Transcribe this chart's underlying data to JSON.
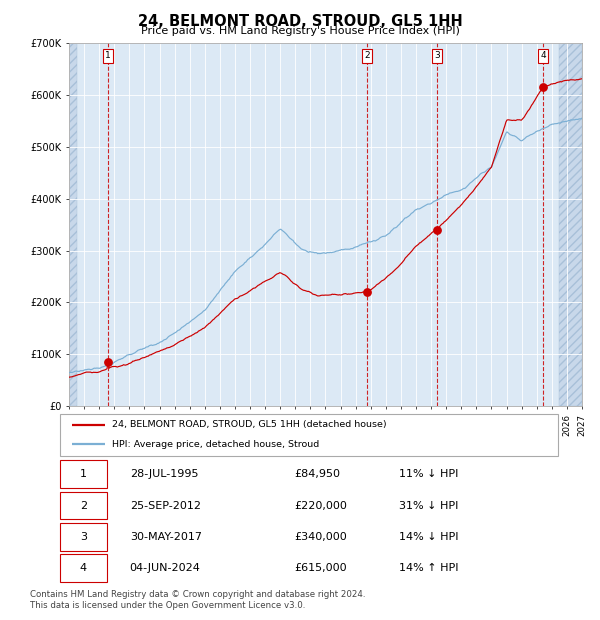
{
  "title": "24, BELMONT ROAD, STROUD, GL5 1HH",
  "subtitle": "Price paid vs. HM Land Registry's House Price Index (HPI)",
  "transactions": [
    {
      "num": 1,
      "date_num": 1995.57,
      "price": 84950,
      "label": "28-JUL-1995",
      "pct": "11%",
      "dir": "↓"
    },
    {
      "num": 2,
      "date_num": 2012.73,
      "price": 220000,
      "label": "25-SEP-2012",
      "pct": "31%",
      "dir": "↓"
    },
    {
      "num": 3,
      "date_num": 2017.41,
      "price": 340000,
      "label": "30-MAY-2017",
      "pct": "14%",
      "dir": "↓"
    },
    {
      "num": 4,
      "date_num": 2024.42,
      "price": 615000,
      "label": "04-JUN-2024",
      "pct": "14%",
      "dir": "↑"
    }
  ],
  "hpi_line_color": "#7bafd4",
  "price_line_color": "#cc0000",
  "dot_color": "#cc0000",
  "dashed_line_color": "#cc0000",
  "background_color": "#dce9f5",
  "grid_color": "#ffffff",
  "xlim": [
    1993,
    2027
  ],
  "ylim": [
    0,
    700000
  ],
  "yticks": [
    0,
    100000,
    200000,
    300000,
    400000,
    500000,
    600000,
    700000
  ],
  "ytick_labels": [
    "£0",
    "£100K",
    "£200K",
    "£300K",
    "£400K",
    "£500K",
    "£600K",
    "£700K"
  ],
  "xticks": [
    1993,
    1994,
    1995,
    1996,
    1997,
    1998,
    1999,
    2000,
    2001,
    2002,
    2003,
    2004,
    2005,
    2006,
    2007,
    2008,
    2009,
    2010,
    2011,
    2012,
    2013,
    2014,
    2015,
    2016,
    2017,
    2018,
    2019,
    2020,
    2021,
    2022,
    2023,
    2024,
    2025,
    2026,
    2027
  ],
  "legend_label_red": "24, BELMONT ROAD, STROUD, GL5 1HH (detached house)",
  "legend_label_blue": "HPI: Average price, detached house, Stroud",
  "footer": "Contains HM Land Registry data © Crown copyright and database right 2024.\nThis data is licensed under the Open Government Licence v3.0.",
  "table_rows": [
    [
      "1",
      "28-JUL-1995",
      "£84,950",
      "11% ↓ HPI"
    ],
    [
      "2",
      "25-SEP-2012",
      "£220,000",
      "31% ↓ HPI"
    ],
    [
      "3",
      "30-MAY-2017",
      "£340,000",
      "14% ↓ HPI"
    ],
    [
      "4",
      "04-JUN-2024",
      "£615,000",
      "14% ↑ HPI"
    ]
  ]
}
